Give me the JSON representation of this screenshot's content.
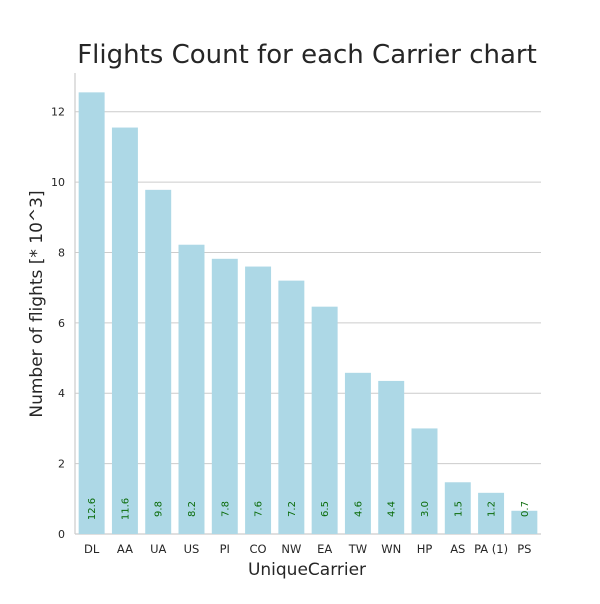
{
  "chart_data": {
    "type": "bar",
    "title": "Flights Count for each Carrier chart",
    "xlabel": "UniqueCarrier",
    "ylabel": "Number of flights [* 10^3]",
    "categories": [
      "DL",
      "AA",
      "UA",
      "US",
      "PI",
      "CO",
      "NW",
      "EA",
      "TW",
      "WN",
      "HP",
      "AS",
      "PA (1)",
      "PS"
    ],
    "values": [
      12.55,
      11.55,
      9.78,
      8.22,
      7.82,
      7.6,
      7.2,
      6.46,
      4.58,
      4.35,
      3.0,
      1.47,
      1.17,
      0.66
    ],
    "value_labels": [
      "12.6",
      "11.6",
      "9.8",
      "8.2",
      "7.8",
      "7.6",
      "7.2",
      "6.5",
      "4.6",
      "4.4",
      "3.0",
      "1.5",
      "1.2",
      "0.7"
    ],
    "ylim": [
      0,
      13.1
    ],
    "yticks": [
      0,
      2,
      4,
      6,
      8,
      10,
      12
    ],
    "ytick_labels": [
      "0",
      "2",
      "4",
      "6",
      "8",
      "10",
      "12"
    ],
    "grid": true,
    "colors": {
      "bar": "#add8e6",
      "value_label": "#0a6b0a",
      "grid": "#cccccc",
      "axis": "#cccccc",
      "text": "#262626"
    }
  }
}
